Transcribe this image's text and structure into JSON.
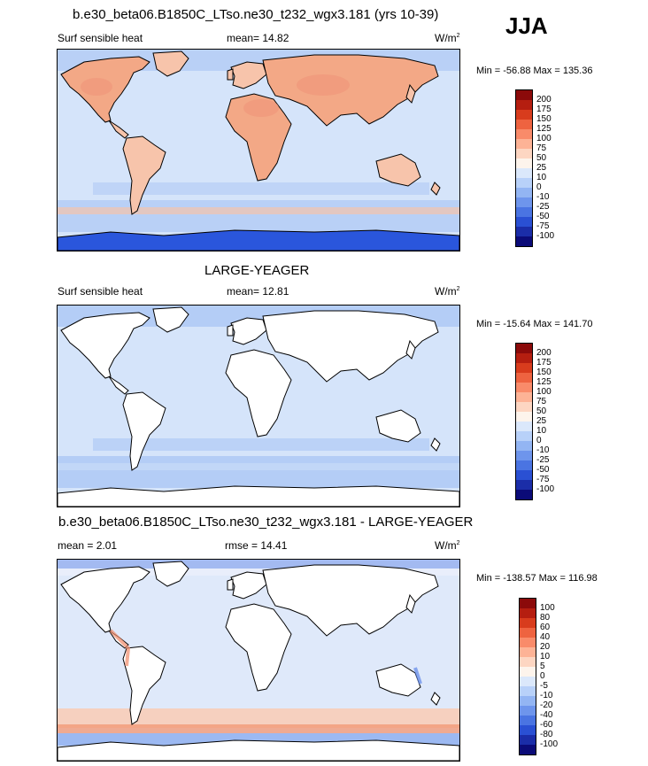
{
  "season": "JJA",
  "panels": [
    {
      "title": "b.e30_beta06.B1850C_LTso.ne30_t232_wgx3.181 (yrs 10-39)",
      "left": "Surf sensible heat",
      "center": "mean=  14.82",
      "units": "W/m",
      "units_sup": "2",
      "minmax": "Min = -56.88 Max = 135.36",
      "levels": [
        "200",
        "175",
        "150",
        "125",
        "100",
        "75",
        "50",
        "25",
        "10",
        "0",
        "-10",
        "-25",
        "-50",
        "-75",
        "-100"
      ],
      "colors": [
        "#8b0a0a",
        "#b51e10",
        "#d83c1d",
        "#ee6340",
        "#f98b6a",
        "#fdb396",
        "#fdd6c2",
        "#fdf4ec",
        "#dbe8fb",
        "#b8d1f9",
        "#93b5f3",
        "#6e95ec",
        "#4a74e2",
        "#2a50d3",
        "#1b2da8",
        "#0b0b78"
      ],
      "land": "#f7c4ab",
      "land_hot": "#f3a886",
      "ocean": "#d5e4fa",
      "ocean_cold": "#b9d0f6",
      "antarctic": "#2a56dc"
    },
    {
      "title": "LARGE-YEAGER",
      "left": "Surf sensible heat",
      "center": "mean=  12.81",
      "units": "W/m",
      "units_sup": "2",
      "minmax": "Min = -15.64 Max = 141.70",
      "levels": [
        "200",
        "175",
        "150",
        "125",
        "100",
        "75",
        "50",
        "25",
        "10",
        "0",
        "-10",
        "-25",
        "-50",
        "-75",
        "-100"
      ],
      "colors": [
        "#8b0a0a",
        "#b51e10",
        "#d83c1d",
        "#ee6340",
        "#f98b6a",
        "#fdb396",
        "#fdd6c2",
        "#fdf4ec",
        "#dbe8fb",
        "#b8d1f9",
        "#93b5f3",
        "#6e95ec",
        "#4a74e2",
        "#2a50d3",
        "#1b2da8",
        "#0b0b78"
      ],
      "land": "#ffffff",
      "land_hot": "#ffffff",
      "ocean": "#d5e4fa",
      "ocean_cold": "#b4cdf6",
      "antarctic": "#ffffff"
    },
    {
      "title": "b.e30_beta06.B1850C_LTso.ne30_t232_wgx3.181 - LARGE-YEAGER",
      "left": "mean =   2.01",
      "center": "rmse =  14.41",
      "units": "W/m",
      "units_sup": "2",
      "minmax": "Min = -138.57 Max = 116.98",
      "levels": [
        "100",
        "80",
        "60",
        "40",
        "20",
        "10",
        "5",
        "0",
        "-5",
        "-10",
        "-20",
        "-40",
        "-60",
        "-80",
        "-100"
      ],
      "colors": [
        "#8b0a0a",
        "#b51e10",
        "#d83c1d",
        "#ee6340",
        "#f98b6a",
        "#fdb396",
        "#fdd6c2",
        "#fdf4ec",
        "#dbe8fb",
        "#b8d1f9",
        "#93b5f3",
        "#6e95ec",
        "#4a74e2",
        "#2a50d3",
        "#1b2da8",
        "#0b0b78"
      ],
      "land": "#ffffff",
      "land_hot": "#ffffff",
      "ocean": "#dfe9fa",
      "ocean_cold": "#f8cdb8",
      "antarctic": "#ffffff"
    }
  ],
  "chart_data": [
    {
      "type": "heatmap",
      "title": "b.e30_beta06.B1850C_LTso.ne30_t232_wgx3.181 (yrs 10-39)",
      "variable": "Surf sensible heat",
      "season": "JJA",
      "units": "W/m2",
      "mean": 14.82,
      "min": -56.88,
      "max": 135.36,
      "contour_levels": [
        -100,
        -75,
        -50,
        -25,
        -10,
        0,
        10,
        25,
        50,
        75,
        100,
        125,
        150,
        175,
        200
      ]
    },
    {
      "type": "heatmap",
      "title": "LARGE-YEAGER",
      "variable": "Surf sensible heat",
      "season": "JJA",
      "units": "W/m2",
      "mean": 12.81,
      "min": -15.64,
      "max": 141.7,
      "contour_levels": [
        -100,
        -75,
        -50,
        -25,
        -10,
        0,
        10,
        25,
        50,
        75,
        100,
        125,
        150,
        175,
        200
      ]
    },
    {
      "type": "heatmap",
      "title": "b.e30_beta06.B1850C_LTso.ne30_t232_wgx3.181 - LARGE-YEAGER",
      "season": "JJA",
      "units": "W/m2",
      "mean": 2.01,
      "rmse": 14.41,
      "min": -138.57,
      "max": 116.98,
      "contour_levels": [
        -100,
        -80,
        -60,
        -40,
        -20,
        -10,
        -5,
        0,
        5,
        10,
        20,
        40,
        60,
        80,
        100
      ]
    }
  ]
}
